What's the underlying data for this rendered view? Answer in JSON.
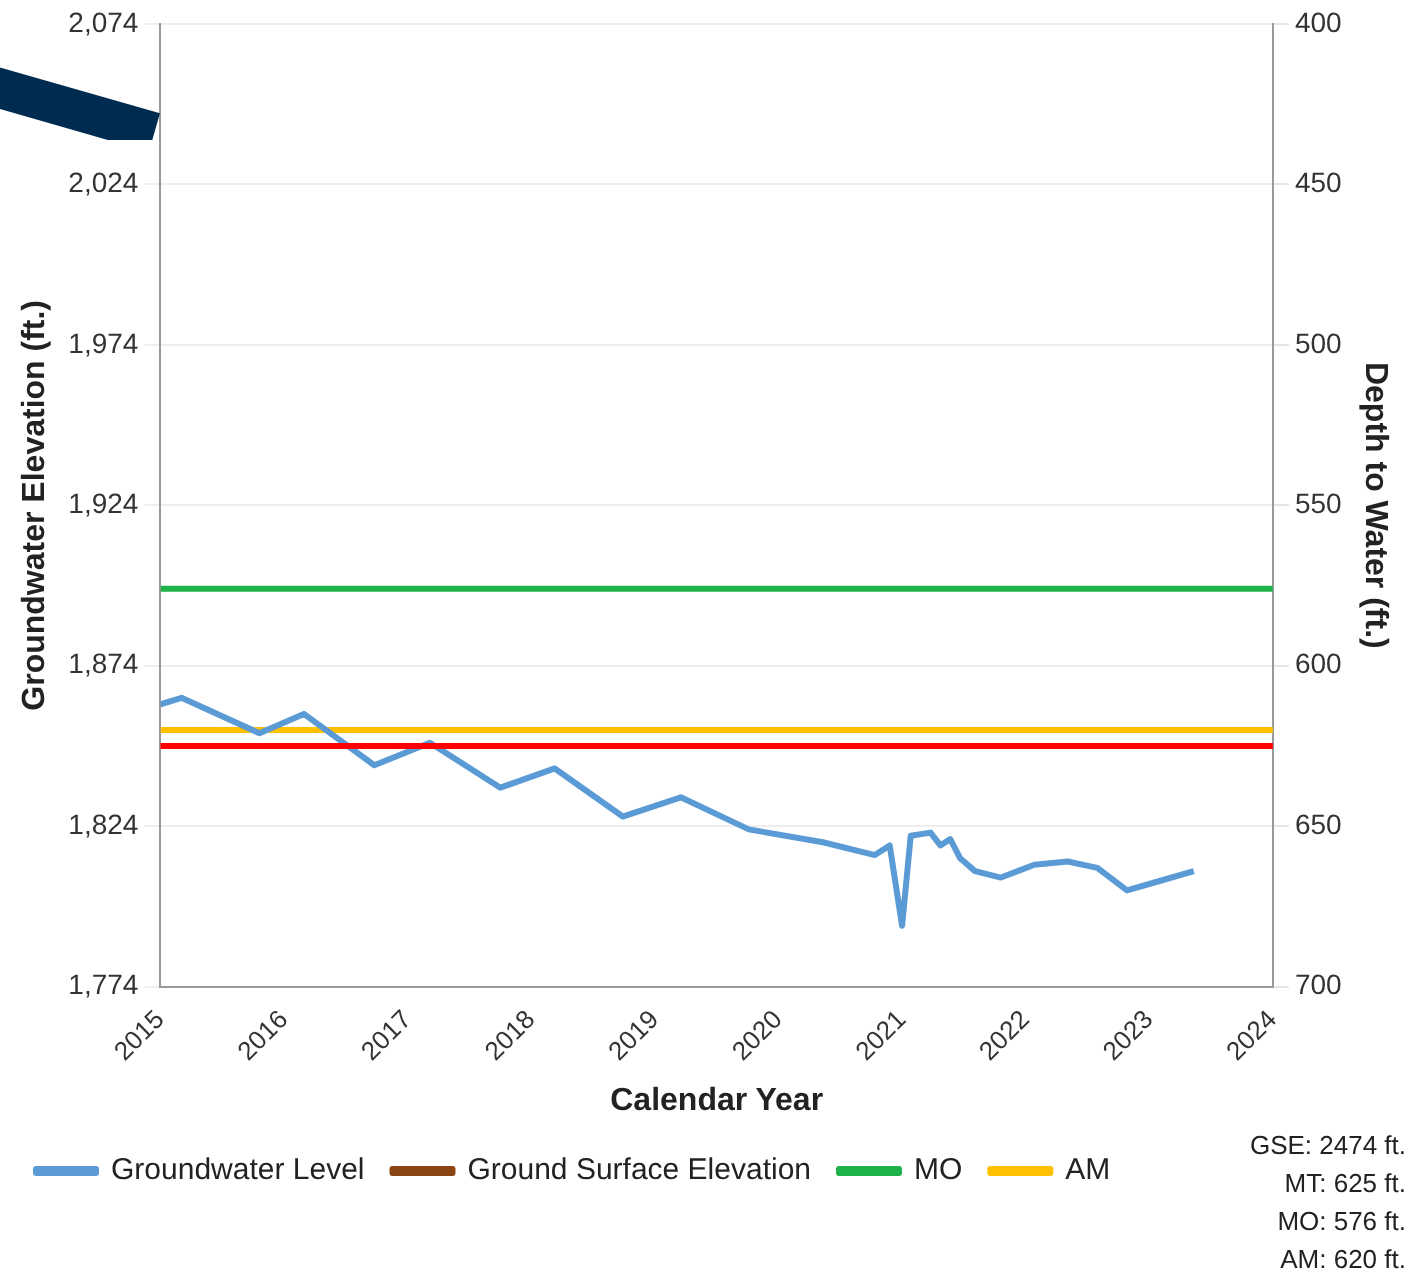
{
  "chart_data": {
    "type": "line",
    "xlabel": "Calendar Year",
    "ylabel": "Groundwater Elevation (ft.)",
    "y2label": "Depth to Water (ft.)",
    "xlim": [
      2015,
      2024
    ],
    "xticks": [
      2015,
      2016,
      2017,
      2018,
      2019,
      2020,
      2021,
      2022,
      2023,
      2024
    ],
    "ylim": [
      1774,
      2074
    ],
    "yticks": [
      {
        "value": 1774,
        "label": "1,774"
      },
      {
        "value": 1824,
        "label": "1,824"
      },
      {
        "value": 1874,
        "label": "1,874"
      },
      {
        "value": 1924,
        "label": "1,924"
      },
      {
        "value": 1974,
        "label": "1,974"
      },
      {
        "value": 2024,
        "label": "2,024"
      },
      {
        "value": 2074,
        "label": "2,074"
      }
    ],
    "y2lim": [
      700,
      400
    ],
    "y2ticks": [
      400,
      450,
      500,
      550,
      600,
      650,
      700
    ],
    "grid": "y",
    "legend": "bottom",
    "marker": "none",
    "line_style": "solid",
    "series": [
      {
        "name": "Groundwater Level",
        "color": "#5b9bd5",
        "x": [
          2015.0,
          2015.17,
          2015.8,
          2016.16,
          2016.73,
          2017.18,
          2017.75,
          2018.19,
          2018.74,
          2019.21,
          2019.76,
          2020.36,
          2020.78,
          2020.9,
          2021.0,
          2021.07,
          2021.23,
          2021.31,
          2021.39,
          2021.47,
          2021.59,
          2021.8,
          2022.07,
          2022.34,
          2022.58,
          2022.82,
          2023.09,
          2023.36
        ],
        "values": [
          1862,
          1864,
          1853,
          1859,
          1843,
          1850,
          1836,
          1842,
          1827,
          1833,
          1823,
          1819,
          1815,
          1818,
          1793,
          1821,
          1822,
          1818,
          1820,
          1814,
          1810,
          1808,
          1812,
          1813,
          1811,
          1804,
          1807,
          1810
        ]
      },
      {
        "name": "Ground Surface Elevation",
        "color": "#8b4513"
      },
      {
        "name": "MO",
        "color": "#1fb24a",
        "x": [
          2015,
          2024
        ],
        "values": [
          1898,
          1898
        ]
      },
      {
        "name": "AM",
        "color": "#ffc000",
        "x": [
          2015,
          2024
        ],
        "values": [
          1854,
          1854
        ]
      }
    ],
    "ref_lines": [
      {
        "axis": "y",
        "value": 1849,
        "color": "#ff0000"
      }
    ],
    "annotations": [
      "GSE: 2474 ft.",
      "MT: 625 ft.",
      "MO: 576 ft.",
      "AM: 620 ft."
    ]
  }
}
